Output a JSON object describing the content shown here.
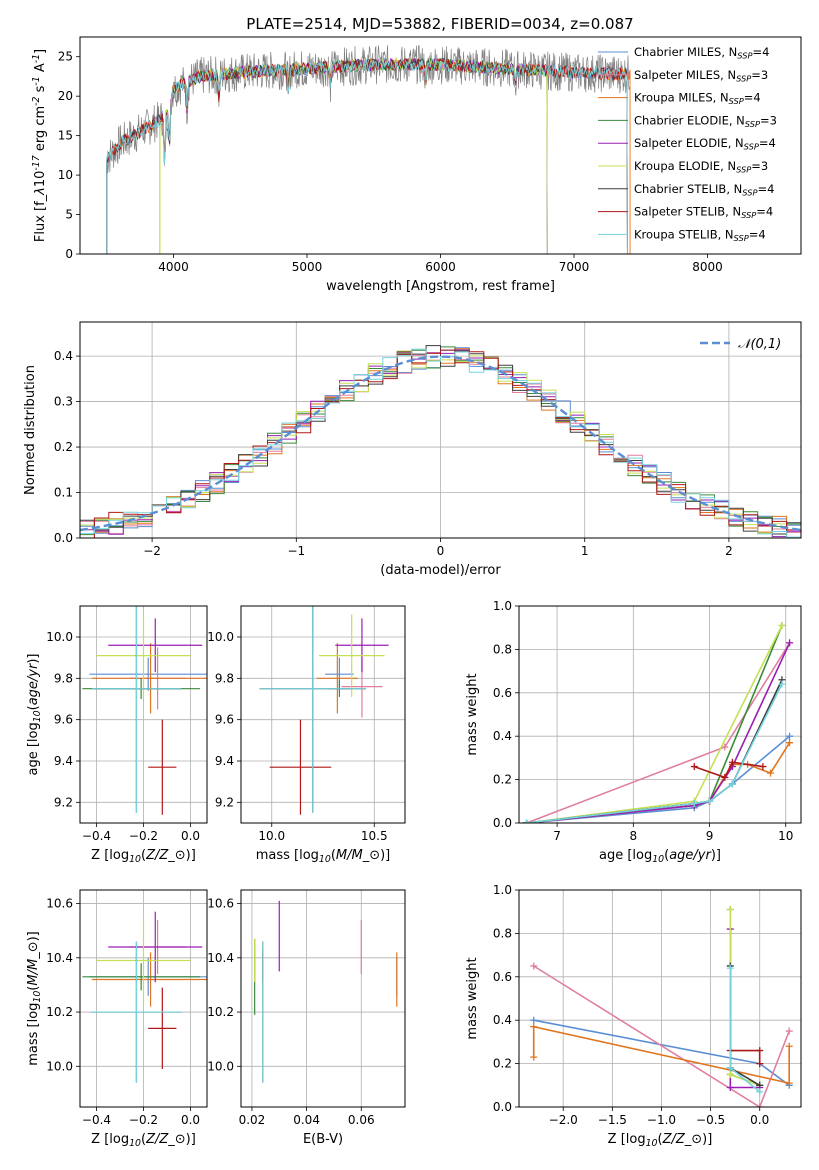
{
  "figure_title": "PLATE=2514, MJD=53882, FIBERID=0034, z=0.087",
  "chart_data": [
    {
      "id": "spectrum",
      "type": "line",
      "xlabel": "wavelength [Angstrom, rest frame]",
      "ylabel": "Flux [f$_\\lambda$10$^{-17}$ erg cm$^{-2}$ s$^{-1}$ A$^{-1}$]",
      "xlim": [
        3300,
        8700
      ],
      "ylim": [
        0,
        27.5
      ],
      "xticks": [
        4000,
        5000,
        6000,
        7000,
        8000
      ],
      "yticks": [
        0,
        5,
        10,
        15,
        20,
        25
      ],
      "grid": false,
      "legend_position": "top-right",
      "observed_color": "#808080",
      "series": [
        {
          "name": "Chabrier MILES, N$_{SSP}$=4",
          "color": "#5b8fd4",
          "start": 3500,
          "end": 7400
        },
        {
          "name": "Salpeter MILES, N$_{SSP}$=3",
          "color": "#e07f9d",
          "start": 3500,
          "end": 7420
        },
        {
          "name": "Kroupa MILES, N$_{SSP}$=4",
          "color": "#e0761f",
          "start": 3500,
          "end": 7420
        },
        {
          "name": "Chabrier ELODIE, N$_{SSP}$=3",
          "color": "#3a8a3a",
          "start": 3900,
          "end": 6800
        },
        {
          "name": "Salpeter ELODIE, N$_{SSP}$=4",
          "color": "#9a1fb3",
          "start": 3900,
          "end": 6800
        },
        {
          "name": "Kroupa ELODIE, N$_{SSP}$=3",
          "color": "#c5e055",
          "start": 3900,
          "end": 6800
        },
        {
          "name": "Chabrier STELIB, N$_{SSP}$=4",
          "color": "#3d3d3d",
          "start": 3500,
          "end": 7400
        },
        {
          "name": "Salpeter STELIB, N$_{SSP}$=4",
          "color": "#b01818",
          "start": 3500,
          "end": 7400
        },
        {
          "name": "Kroupa STELIB, N$_{SSP}$=4",
          "color": "#76d3de",
          "start": 3500,
          "end": 7400
        }
      ],
      "profile_points": [
        [
          3500,
          12
        ],
        [
          3600,
          14
        ],
        [
          3700,
          15
        ],
        [
          3800,
          16
        ],
        [
          3900,
          17
        ],
        [
          3950,
          18
        ],
        [
          4000,
          21
        ],
        [
          4200,
          22.5
        ],
        [
          4500,
          23
        ],
        [
          5000,
          23.5
        ],
        [
          5500,
          24
        ],
        [
          6000,
          24
        ],
        [
          6500,
          23.5
        ],
        [
          7000,
          23
        ],
        [
          7400,
          22.8
        ]
      ]
    },
    {
      "id": "residuals",
      "type": "histogram",
      "xlabel": "(data-model)/error",
      "ylabel": "Normed distribution",
      "xlim": [
        -2.5,
        2.5
      ],
      "ylim": [
        0,
        0.475
      ],
      "xticks": [
        -2,
        -1,
        0,
        1,
        2
      ],
      "yticks": [
        0.0,
        0.1,
        0.2,
        0.3,
        0.4
      ],
      "grid": true,
      "legend_position": "top-right",
      "reference_curve": {
        "name": "$\\mathcal{N}(0,1)$",
        "color": "#5b8fd4",
        "mean": 0,
        "sigma": 1
      },
      "bin_width": 0.1,
      "series_colors": [
        "#5b8fd4",
        "#e07f9d",
        "#e0761f",
        "#3a8a3a",
        "#9a1fb3",
        "#c5e055",
        "#3d3d3d",
        "#b01818",
        "#76d3de"
      ]
    },
    {
      "id": "age-vs-Z",
      "type": "scatter",
      "xlabel": "Z [log$_{10}$($Z/Z_\\odot$)]",
      "ylabel": "age  [log$_{10}$($age/yr$)]",
      "xlim": [
        -0.47,
        0.07
      ],
      "ylim": [
        9.1,
        10.15
      ],
      "xticks": [
        -0.4,
        -0.2,
        0.0
      ],
      "yticks": [
        9.2,
        9.4,
        9.6,
        9.8,
        10.0
      ],
      "grid": true,
      "points": [
        {
          "color": "#5b8fd4",
          "x": -0.18,
          "xerr": 0.25,
          "y": 9.82,
          "yerr": 0.08
        },
        {
          "color": "#e07f9d",
          "x": -0.14,
          "xerr": 0.12,
          "y": 9.8,
          "yerr": 0.15
        },
        {
          "color": "#e0761f",
          "x": -0.17,
          "xerr": 0.25,
          "y": 9.8,
          "yerr": 0.17
        },
        {
          "color": "#3a8a3a",
          "x": -0.21,
          "xerr": 0.25,
          "y": 9.75,
          "yerr": 0.05
        },
        {
          "color": "#9a1fb3",
          "x": -0.15,
          "xerr": 0.2,
          "y": 9.96,
          "yerr": 0.13
        },
        {
          "color": "#c5e055",
          "x": -0.2,
          "xerr": 0.2,
          "y": 9.91,
          "yerr": 0.2
        },
        {
          "color": "#3d3d3d",
          "x": -0.23,
          "xerr": 0.19,
          "y": 9.75,
          "yerr": 0.6
        },
        {
          "color": "#b01818",
          "x": -0.12,
          "xerr": 0.06,
          "y": 9.37,
          "yerr": 0.23
        },
        {
          "color": "#76d3de",
          "x": -0.23,
          "xerr": 0.19,
          "y": 9.75,
          "yerr": 0.6
        }
      ]
    },
    {
      "id": "age-vs-mass",
      "type": "scatter",
      "xlabel": "mass [log$_{10}$($M/M_\\odot$)]",
      "ylabel": "",
      "xlim": [
        9.85,
        10.65
      ],
      "ylim": [
        9.1,
        10.15
      ],
      "xticks": [
        10.0,
        10.5
      ],
      "yticks": [
        9.2,
        9.4,
        9.6,
        9.8,
        10.0
      ],
      "grid": true,
      "points": [
        {
          "color": "#5b8fd4",
          "x": 10.33,
          "xerr": 0.07,
          "y": 9.82,
          "yerr": 0.08
        },
        {
          "color": "#e07f9d",
          "x": 10.44,
          "xerr": 0.1,
          "y": 9.76,
          "yerr": 0.15
        },
        {
          "color": "#e0761f",
          "x": 10.32,
          "xerr": 0.1,
          "y": 9.8,
          "yerr": 0.17
        },
        {
          "color": "#3a8a3a",
          "x": 10.33,
          "xerr": 0.05,
          "y": 9.75,
          "yerr": 0.04
        },
        {
          "color": "#9a1fb3",
          "x": 10.44,
          "xerr": 0.13,
          "y": 9.96,
          "yerr": 0.13
        },
        {
          "color": "#c5e055",
          "x": 10.39,
          "xerr": 0.16,
          "y": 9.91,
          "yerr": 0.2
        },
        {
          "color": "#3d3d3d",
          "x": 10.2,
          "xerr": 0.26,
          "y": 9.75,
          "yerr": 0.6
        },
        {
          "color": "#b01818",
          "x": 10.14,
          "xerr": 0.15,
          "y": 9.37,
          "yerr": 0.23
        },
        {
          "color": "#76d3de",
          "x": 10.2,
          "xerr": 0.26,
          "y": 9.75,
          "yerr": 0.6
        }
      ]
    },
    {
      "id": "mass-weight-vs-age",
      "type": "line",
      "xlabel": "age  [log$_{10}$($age/yr$)]",
      "ylabel": "mass weight",
      "xlim": [
        6.5,
        10.2
      ],
      "ylim": [
        0,
        1.0
      ],
      "xticks": [
        7,
        8,
        9,
        10
      ],
      "yticks": [
        0.0,
        0.2,
        0.4,
        0.6,
        0.8,
        1.0
      ],
      "grid": true,
      "series": [
        {
          "color": "#5b8fd4",
          "x": [
            6.6,
            8.8,
            9.0,
            9.3,
            10.05
          ],
          "y": [
            0,
            0.07,
            0.1,
            0.18,
            0.4
          ]
        },
        {
          "color": "#e07f9d",
          "x": [
            6.6,
            9.2,
            10.05
          ],
          "y": [
            0,
            0.35,
            0.83
          ]
        },
        {
          "color": "#e0761f",
          "x": [
            6.6,
            8.8,
            9.0,
            9.3,
            9.5,
            9.8,
            10.05
          ],
          "y": [
            0,
            0.08,
            0.1,
            0.27,
            0.27,
            0.23,
            0.37
          ]
        },
        {
          "color": "#3a8a3a",
          "x": [
            6.6,
            8.8,
            9.0,
            9.95
          ],
          "y": [
            0,
            0.09,
            0.1,
            0.91
          ]
        },
        {
          "color": "#9a1fb3",
          "x": [
            6.6,
            8.8,
            9.0,
            9.3,
            10.05
          ],
          "y": [
            0,
            0.08,
            0.1,
            0.26,
            0.83
          ]
        },
        {
          "color": "#c5e055",
          "x": [
            6.6,
            8.8,
            9.95
          ],
          "y": [
            0,
            0.1,
            0.91
          ]
        },
        {
          "color": "#3d3d3d",
          "x": [
            6.6,
            8.8,
            9.0,
            9.3,
            9.95
          ],
          "y": [
            0,
            0.09,
            0.1,
            0.18,
            0.66
          ]
        },
        {
          "color": "#b01818",
          "x": [
            8.8,
            9.2,
            9.3,
            9.7
          ],
          "y": [
            0.26,
            0.21,
            0.28,
            0.26
          ]
        },
        {
          "color": "#76d3de",
          "x": [
            6.6,
            8.8,
            9.0,
            9.3,
            9.95
          ],
          "y": [
            0,
            0.09,
            0.1,
            0.18,
            0.64
          ]
        }
      ]
    },
    {
      "id": "mass-vs-Z",
      "type": "scatter",
      "xlabel": "Z [log$_{10}$($Z/Z_\\odot$)]",
      "ylabel": "mass [log$_{10}$($M/M_\\odot$)]",
      "xlim": [
        -0.47,
        0.07
      ],
      "ylim": [
        9.85,
        10.65
      ],
      "xticks": [
        -0.4,
        -0.2,
        0.0
      ],
      "yticks": [
        10.0,
        10.2,
        10.4,
        10.6
      ],
      "grid": true,
      "points": [
        {
          "color": "#5b8fd4",
          "x": -0.18,
          "xerr": 0.25,
          "y": 10.33,
          "yerr": 0.07
        },
        {
          "color": "#e07f9d",
          "x": -0.14,
          "xerr": 0.12,
          "y": 10.44,
          "yerr": 0.1
        },
        {
          "color": "#e0761f",
          "x": -0.17,
          "xerr": 0.25,
          "y": 10.32,
          "yerr": 0.1
        },
        {
          "color": "#3a8a3a",
          "x": -0.21,
          "xerr": 0.25,
          "y": 10.33,
          "yerr": 0.05
        },
        {
          "color": "#9a1fb3",
          "x": -0.15,
          "xerr": 0.2,
          "y": 10.44,
          "yerr": 0.13
        },
        {
          "color": "#c5e055",
          "x": -0.2,
          "xerr": 0.2,
          "y": 10.39,
          "yerr": 0.16
        },
        {
          "color": "#3d3d3d",
          "x": -0.23,
          "xerr": 0.19,
          "y": 10.2,
          "yerr": 0.26
        },
        {
          "color": "#b01818",
          "x": -0.12,
          "xerr": 0.06,
          "y": 10.14,
          "yerr": 0.15
        },
        {
          "color": "#76d3de",
          "x": -0.23,
          "xerr": 0.19,
          "y": 10.2,
          "yerr": 0.26
        }
      ]
    },
    {
      "id": "mass-vs-EBV",
      "type": "scatter",
      "xlabel": "E(B-V)",
      "ylabel": "",
      "xlim": [
        0.016,
        0.076
      ],
      "ylim": [
        9.85,
        10.65
      ],
      "xticks": [
        0.02,
        0.04,
        0.06
      ],
      "yticks": [
        10.0,
        10.2,
        10.4,
        10.6
      ],
      "grid": true,
      "points": [
        {
          "color": "#5b8fd4",
          "x": 0.073,
          "y": 10.33,
          "yerr": 0.07
        },
        {
          "color": "#e07f9d",
          "x": 0.06,
          "y": 10.44,
          "yerr": 0.1
        },
        {
          "color": "#e0761f",
          "x": 0.073,
          "y": 10.32,
          "yerr": 0.1
        },
        {
          "color": "#3a8a3a",
          "x": 0.021,
          "y": 10.33,
          "yerr": 0.14
        },
        {
          "color": "#9a1fb3",
          "x": 0.03,
          "y": 10.48,
          "yerr": 0.13
        },
        {
          "color": "#c5e055",
          "x": 0.021,
          "y": 10.39,
          "yerr": 0.08
        },
        {
          "color": "#3d3d3d",
          "x": 0.024,
          "y": 10.2,
          "yerr": 0.26
        },
        {
          "color": "#b01818",
          "x": 0.024,
          "y": 10.37,
          "yerr": 0.06
        },
        {
          "color": "#76d3de",
          "x": 0.024,
          "y": 10.2,
          "yerr": 0.26
        }
      ]
    },
    {
      "id": "mass-weight-vs-Z",
      "type": "line",
      "xlabel": "Z [log$_{10}$($Z/Z_\\odot$)]",
      "ylabel": "mass weight",
      "xlim": [
        -2.45,
        0.42
      ],
      "ylim": [
        0,
        1.0
      ],
      "xticks": [
        -2.0,
        -1.5,
        -1.0,
        -0.5,
        0.0
      ],
      "yticks": [
        0.0,
        0.2,
        0.4,
        0.6,
        0.8,
        1.0
      ],
      "grid": true,
      "series": [
        {
          "color": "#5b8fd4",
          "x": [
            -2.3,
            0.0,
            0.3
          ],
          "y": [
            0.4,
            0.2,
            0.1
          ]
        },
        {
          "color": "#e07f9d",
          "x": [
            -2.3,
            0.0,
            0.3
          ],
          "y": [
            0.65,
            0.0,
            0.35
          ]
        },
        {
          "color": "#e0761f",
          "x": [
            -2.3,
            -2.3,
            0.3,
            0.3
          ],
          "y": [
            0.23,
            0.37,
            0.11,
            0.28
          ]
        },
        {
          "color": "#3a8a3a",
          "x": [
            -0.3,
            -0.3,
            0.0
          ],
          "y": [
            0.91,
            0.15,
            0.1
          ]
        },
        {
          "color": "#9a1fb3",
          "x": [
            -0.3,
            -0.3,
            0.0
          ],
          "y": [
            0.82,
            0.09,
            0.09
          ]
        },
        {
          "color": "#c5e055",
          "x": [
            -0.3,
            -0.3,
            0.0
          ],
          "y": [
            0.91,
            0.15,
            0.1
          ]
        },
        {
          "color": "#3d3d3d",
          "x": [
            -0.3,
            -0.3,
            0.0
          ],
          "y": [
            0.65,
            0.18,
            0.1
          ]
        },
        {
          "color": "#b01818",
          "x": [
            -0.3,
            0.0,
            0.0
          ],
          "y": [
            0.26,
            0.26,
            0.2
          ]
        },
        {
          "color": "#76d3de",
          "x": [
            -0.3,
            -0.3,
            0.0
          ],
          "y": [
            0.64,
            0.18,
            0.07
          ]
        }
      ]
    }
  ]
}
